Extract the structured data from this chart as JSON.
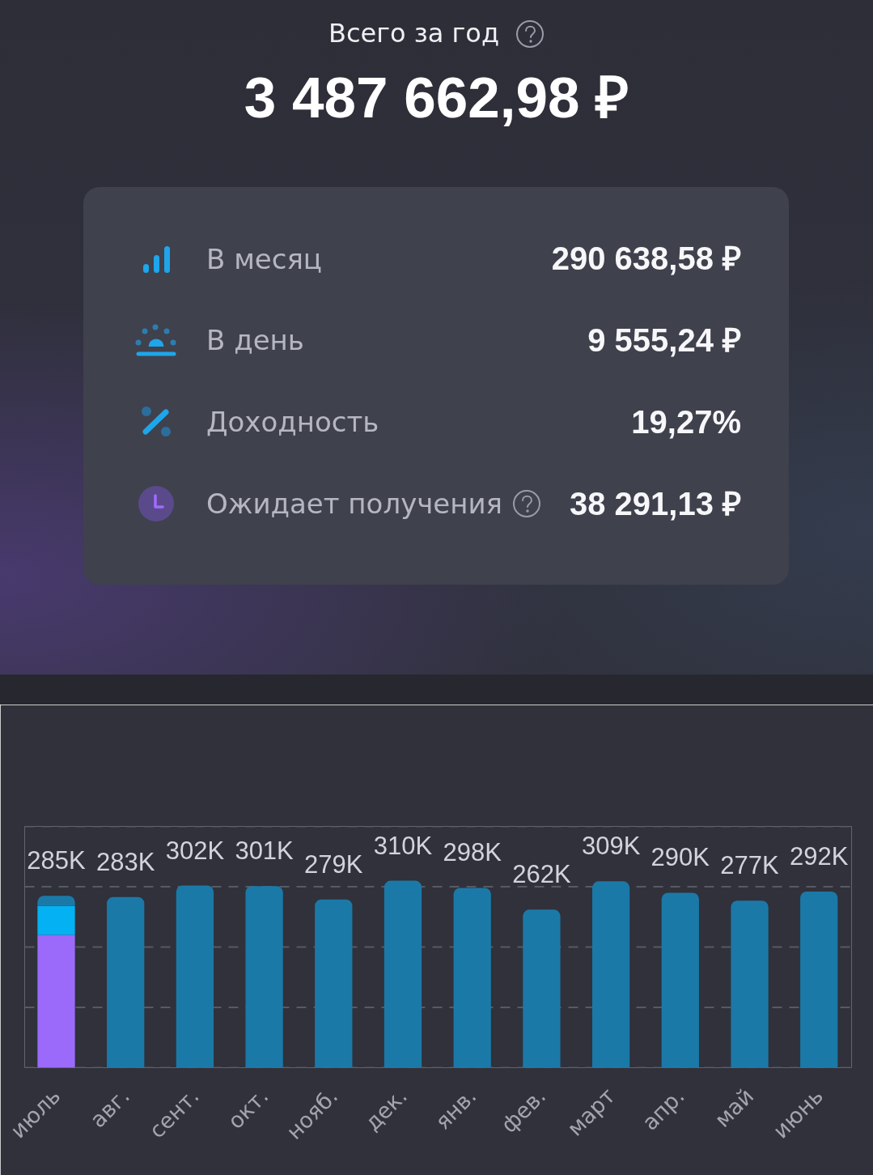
{
  "chart_data": {
    "type": "bar",
    "title": "Всего за год",
    "subtitle": "3 487 662,98 ₽",
    "annotations": [
      "В месяц",
      "290 638,58 ₽",
      "В день",
      "9 555,24 ₽",
      "Доходность",
      "19,27%",
      "Ожидает получения",
      "38 291,13 ₽"
    ],
    "categories": [
      "июль",
      "авг.",
      "сент.",
      "окт.",
      "нояб.",
      "дек.",
      "янв.",
      "фев.",
      "март",
      "апр.",
      "май",
      "июнь"
    ],
    "stacked": true,
    "series": [
      {
        "color": "#9b6afa",
        "values": [
          220,
          null,
          null,
          null,
          null,
          null,
          null,
          null,
          null,
          null,
          null,
          null
        ]
      },
      {
        "color": "#04b1f2",
        "values": [
          48,
          null,
          null,
          null,
          null,
          null,
          null,
          null,
          null,
          null,
          null,
          null
        ]
      },
      {
        "color": "#1b79a8",
        "values": [
          17,
          283,
          302,
          301,
          279,
          310,
          298,
          262,
          309,
          290,
          277,
          292
        ],
        "value_labels": [
          null,
          "283K",
          "302K",
          "301K",
          "279K",
          "310K",
          "298K",
          "262K",
          "309K",
          "290K",
          "277K",
          "292K"
        ]
      }
    ],
    "totals": [
      "285K",
      null,
      null,
      null,
      null,
      null,
      null,
      null,
      null,
      null,
      null,
      null
    ],
    "ylim": [
      0,
      400
    ],
    "yticks": [
      {
        "value": 0,
        "label": null
      },
      {
        "value": 100,
        "label": null
      },
      {
        "value": 200,
        "label": null
      },
      {
        "value": 300,
        "label": null
      },
      {
        "value": 400,
        "label": null
      }
    ],
    "grid": "y",
    "tick_labels": "x"
  }
}
